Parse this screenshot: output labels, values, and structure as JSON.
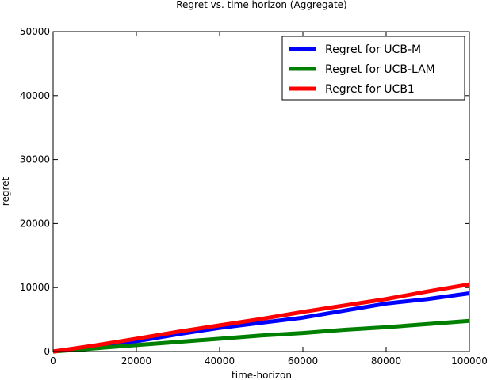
{
  "chart_data": {
    "type": "line",
    "title": "Regret vs. time horizon (Aggregate)",
    "xlabel": "time-horizon",
    "ylabel": "regret",
    "xlim": [
      0,
      100000
    ],
    "ylim": [
      0,
      50000
    ],
    "xticks": [
      0,
      20000,
      40000,
      60000,
      80000,
      100000
    ],
    "yticks": [
      0,
      10000,
      20000,
      30000,
      40000,
      50000
    ],
    "grid": false,
    "legend_position": "top-right",
    "series": [
      {
        "name": "Regret for UCB-M",
        "color": "#0000ff",
        "x": [
          0,
          10000,
          20000,
          30000,
          40000,
          50000,
          60000,
          70000,
          80000,
          90000,
          100000
        ],
        "y": [
          0,
          750,
          1600,
          2700,
          3700,
          4500,
          5300,
          6400,
          7500,
          8200,
          9100
        ]
      },
      {
        "name": "Regret for UCB-LAM",
        "color": "#008000",
        "x": [
          0,
          10000,
          20000,
          30000,
          40000,
          50000,
          60000,
          70000,
          80000,
          90000,
          100000
        ],
        "y": [
          0,
          500,
          1000,
          1500,
          2000,
          2500,
          2900,
          3400,
          3800,
          4300,
          4800
        ]
      },
      {
        "name": "Regret for UCB1",
        "color": "#ff0000",
        "x": [
          0,
          10000,
          20000,
          30000,
          40000,
          50000,
          60000,
          70000,
          80000,
          90000,
          100000
        ],
        "y": [
          0,
          950,
          2000,
          3100,
          4100,
          5100,
          6200,
          7200,
          8200,
          9400,
          10500
        ]
      }
    ]
  }
}
